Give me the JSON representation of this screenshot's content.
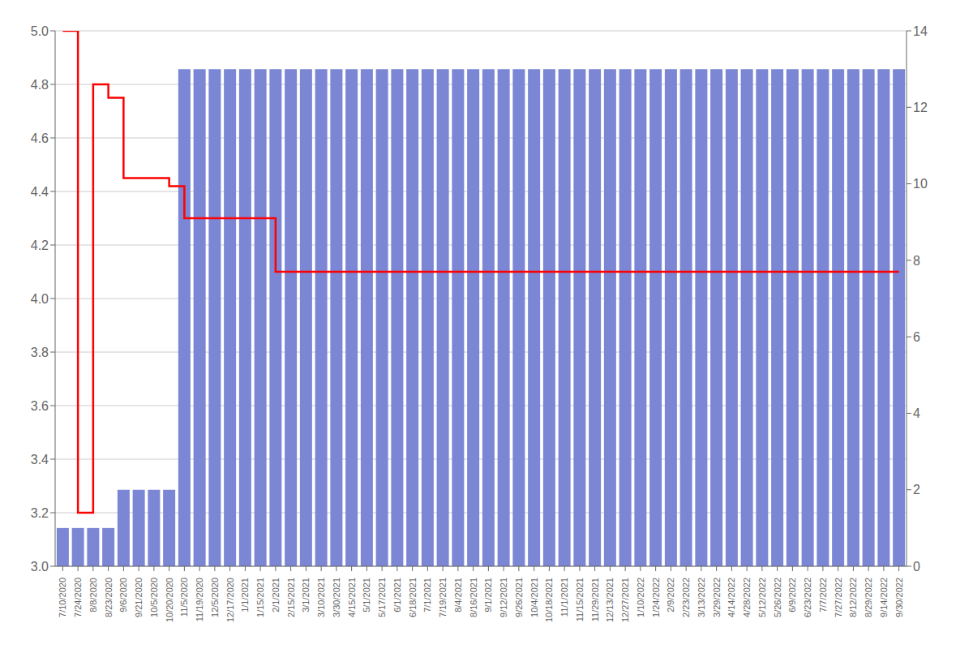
{
  "chart_data": {
    "type": "combo",
    "categories": [
      "7/10/2020",
      "7/24/2020",
      "8/8/2020",
      "8/23/2020",
      "9/6/2020",
      "9/21/2020",
      "10/5/2020",
      "10/20/2020",
      "11/5/2020",
      "11/19/2020",
      "12/5/2020",
      "12/17/2020",
      "1/1/2021",
      "1/15/2021",
      "2/1/2021",
      "2/15/2021",
      "3/1/2021",
      "3/10/2021",
      "3/30/2021",
      "4/15/2021",
      "5/1/2021",
      "5/17/2021",
      "6/1/2021",
      "6/18/2021",
      "7/1/2021",
      "7/19/2021",
      "8/4/2021",
      "8/16/2021",
      "9/1/2021",
      "9/12/2021",
      "9/26/2021",
      "10/4/2021",
      "10/18/2021",
      "11/1/2021",
      "11/15/2021",
      "11/29/2021",
      "12/13/2021",
      "12/27/2021",
      "1/10/2022",
      "1/24/2022",
      "2/9/2022",
      "2/23/2022",
      "3/13/2022",
      "3/29/2022",
      "4/14/2022",
      "4/28/2022",
      "5/12/2022",
      "5/26/2022",
      "6/9/2022",
      "6/23/2022",
      "7/7/2022",
      "7/27/2022",
      "8/12/2022",
      "8/29/2022",
      "9/14/2022",
      "9/30/2022"
    ],
    "series": [
      {
        "type": "bar",
        "axis": "y2",
        "color": "#7b86d4",
        "values": [
          1,
          1,
          1,
          1,
          2,
          2,
          2,
          2,
          13,
          13,
          13,
          13,
          13,
          13,
          13,
          13,
          13,
          13,
          13,
          13,
          13,
          13,
          13,
          13,
          13,
          13,
          13,
          13,
          13,
          13,
          13,
          13,
          13,
          13,
          13,
          13,
          13,
          13,
          13,
          13,
          13,
          13,
          13,
          13,
          13,
          13,
          13,
          13,
          13,
          13,
          13,
          13,
          13,
          13,
          13,
          13
        ]
      },
      {
        "type": "line",
        "axis": "y",
        "line_style": "step",
        "color": "#ff0000",
        "values": [
          5.0,
          3.2,
          4.8,
          4.75,
          4.45,
          4.45,
          4.45,
          4.42,
          4.3,
          4.3,
          4.3,
          4.3,
          4.3,
          4.3,
          4.1,
          4.1,
          4.1,
          4.1,
          4.1,
          4.1,
          4.1,
          4.1,
          4.1,
          4.1,
          4.1,
          4.1,
          4.1,
          4.1,
          4.1,
          4.1,
          4.1,
          4.1,
          4.1,
          4.1,
          4.1,
          4.1,
          4.1,
          4.1,
          4.1,
          4.1,
          4.1,
          4.1,
          4.1,
          4.1,
          4.1,
          4.1,
          4.1,
          4.1,
          4.1,
          4.1,
          4.1,
          4.1,
          4.1,
          4.1,
          4.1,
          4.1
        ]
      }
    ],
    "ylim": [
      3.0,
      5.0
    ],
    "yticks": [
      {
        "value": 3.0,
        "label": "3.0"
      },
      3.2,
      3.4,
      3.6,
      3.8,
      {
        "value": 4.0,
        "label": "4.0"
      },
      4.2,
      4.4,
      4.6,
      4.8,
      {
        "value": 5.0,
        "label": "5.0"
      }
    ],
    "y2lim": [
      0,
      14
    ],
    "y2ticks": [
      0,
      2,
      4,
      6,
      8,
      10,
      12,
      14
    ],
    "grid": true
  }
}
